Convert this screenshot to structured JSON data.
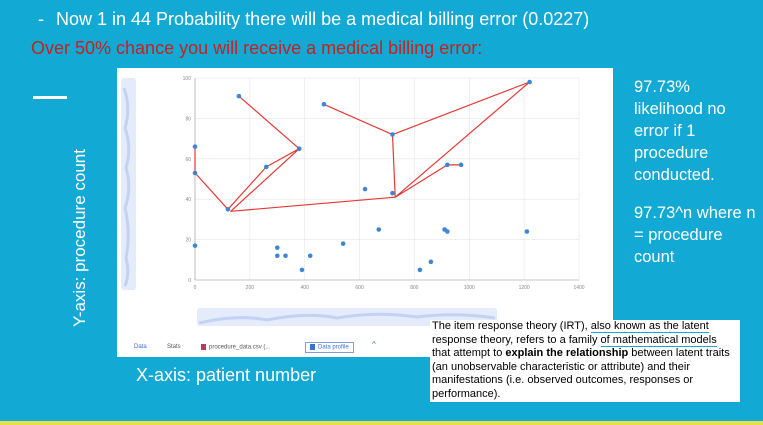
{
  "slide": {
    "title_dash": "-",
    "title": "Now 1 in 44 Probability there will be a medical billing error (0.0227)",
    "subtitle": "Over 50% chance you will receive a medical billing error:",
    "y_axis_label": "Y-axis: procedure count",
    "x_axis_label": "X-axis: patient number",
    "side_text_1": "97.73% likelihood no error if 1 procedure conducted.",
    "side_text_2": "97.73^n where n = procedure count",
    "irt": {
      "p1": "The item response theory (IRT), ",
      "link1": "also known as the latent",
      "p2": " response theory, refers to a family ",
      "link2": "of mathematical models",
      "p3": " that attempt to ",
      "bold": "explain the relationship",
      "p4": " between latent traits (an unobservable characteristic or attribute) and their manifestations (i.e. observed outcomes, responses or performance)."
    },
    "colors": {
      "background": "#12a9d4",
      "subtitle": "#c5221f",
      "points": "#3b86d6",
      "connector": "#e53935"
    }
  },
  "tool_tabs": {
    "data": "Data",
    "stats": "Stats",
    "file": "procedure_data.csv (...",
    "profile": "Data profile",
    "chevron": "^"
  },
  "chart_data": {
    "type": "scatter",
    "xlim": [
      0,
      1400
    ],
    "ylim": [
      0,
      100
    ],
    "x_ticks": [
      "0",
      "200",
      "400",
      "600",
      "800",
      "1000",
      "1200",
      "1400"
    ],
    "y_ticks": [
      "0",
      "20",
      "40",
      "60",
      "80",
      "100"
    ],
    "grid": true,
    "points": [
      {
        "x": 0,
        "y": 66
      },
      {
        "x": 0,
        "y": 53
      },
      {
        "x": 0,
        "y": 17
      },
      {
        "x": 120,
        "y": 35
      },
      {
        "x": 160,
        "y": 91
      },
      {
        "x": 260,
        "y": 56
      },
      {
        "x": 300,
        "y": 16
      },
      {
        "x": 300,
        "y": 12
      },
      {
        "x": 330,
        "y": 12
      },
      {
        "x": 380,
        "y": 65
      },
      {
        "x": 390,
        "y": 5
      },
      {
        "x": 420,
        "y": 12
      },
      {
        "x": 470,
        "y": 87
      },
      {
        "x": 540,
        "y": 18
      },
      {
        "x": 620,
        "y": 45
      },
      {
        "x": 670,
        "y": 25
      },
      {
        "x": 720,
        "y": 72
      },
      {
        "x": 720,
        "y": 43
      },
      {
        "x": 820,
        "y": 5
      },
      {
        "x": 860,
        "y": 9
      },
      {
        "x": 910,
        "y": 25
      },
      {
        "x": 920,
        "y": 24
      },
      {
        "x": 920,
        "y": 57
      },
      {
        "x": 970,
        "y": 57
      },
      {
        "x": 1210,
        "y": 24
      },
      {
        "x": 1220,
        "y": 98
      }
    ],
    "connector_path": [
      {
        "x": 0,
        "y": 66
      },
      {
        "x": 0,
        "y": 53
      },
      {
        "x": 120,
        "y": 35
      },
      {
        "x": 260,
        "y": 56
      },
      {
        "x": 380,
        "y": 65
      },
      {
        "x": 160,
        "y": 91
      },
      {
        "x": 380,
        "y": 65
      },
      {
        "x": 130,
        "y": 34
      },
      {
        "x": 730,
        "y": 41
      },
      {
        "x": 720,
        "y": 72
      },
      {
        "x": 470,
        "y": 87
      },
      {
        "x": 720,
        "y": 72
      },
      {
        "x": 1220,
        "y": 98
      },
      {
        "x": 730,
        "y": 41
      },
      {
        "x": 920,
        "y": 57
      },
      {
        "x": 970,
        "y": 57
      }
    ]
  }
}
